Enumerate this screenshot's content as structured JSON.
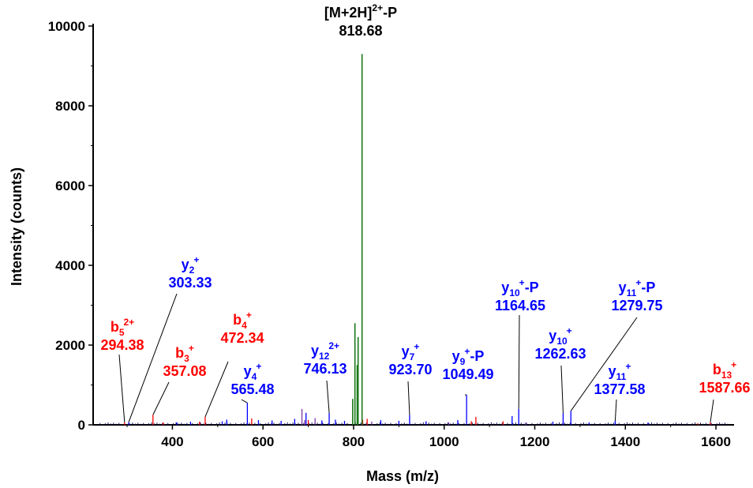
{
  "chart_data": {
    "type": "bar",
    "xlabel": "Mass (m/z)",
    "ylabel": "Intensity (counts)",
    "xlim": [
      225,
      1640
    ],
    "ylim": [
      0,
      10000
    ],
    "x_ticks": [
      "400",
      "600",
      "800",
      "1000",
      "1200",
      "1400",
      "1600"
    ],
    "y_ticks": [
      "0",
      "2000",
      "4000",
      "6000",
      "8000",
      "10000"
    ],
    "grid": false,
    "colors": {
      "y_ion": "#0000ff",
      "b_ion": "#ff0000",
      "precursor": "#000000",
      "precursor_peak": "#1a7a1a",
      "leader": "#000000"
    },
    "annotated_peaks": [
      {
        "base": "[M+2H]",
        "sub": "",
        "sup": "2+",
        "suffix": "-P",
        "mz": "818.68",
        "ion": "precursor",
        "x": 818.68,
        "y": 9300
      },
      {
        "base": "y",
        "sub": "2",
        "sup": "+",
        "suffix": "",
        "mz": "303.33",
        "ion": "y",
        "x": 303.33,
        "y": 60
      },
      {
        "base": "b",
        "sub": "5",
        "sup": "2+",
        "suffix": "",
        "mz": "294.38",
        "ion": "b",
        "x": 294.38,
        "y": 60
      },
      {
        "base": "b",
        "sub": "4",
        "sup": "+",
        "suffix": "",
        "mz": "472.34",
        "ion": "b",
        "x": 472.34,
        "y": 200
      },
      {
        "base": "b",
        "sub": "3",
        "sup": "+",
        "suffix": "",
        "mz": "357.08",
        "ion": "b",
        "x": 357.08,
        "y": 250
      },
      {
        "base": "y",
        "sub": "4",
        "sup": "+",
        "suffix": "",
        "mz": "565.48",
        "ion": "y",
        "x": 565.48,
        "y": 550
      },
      {
        "base": "y",
        "sub": "12",
        "sup": "2+",
        "suffix": "",
        "mz": "746.13",
        "ion": "y",
        "x": 746.13,
        "y": 300
      },
      {
        "base": "y",
        "sub": "7",
        "sup": "+",
        "suffix": "",
        "mz": "923.70",
        "ion": "y",
        "x": 923.7,
        "y": 250
      },
      {
        "base": "y",
        "sub": "9",
        "sup": "+",
        "suffix": "-P",
        "mz": "1049.49",
        "ion": "y",
        "x": 1049.49,
        "y": 750
      },
      {
        "base": "y",
        "sub": "10",
        "sup": "+",
        "suffix": "-P",
        "mz": "1164.65",
        "ion": "y",
        "x": 1164.65,
        "y": 400
      },
      {
        "base": "y",
        "sub": "10",
        "sup": "+",
        "suffix": "",
        "mz": "1262.63",
        "ion": "y",
        "x": 1262.63,
        "y": 300
      },
      {
        "base": "y",
        "sub": "11",
        "sup": "+",
        "suffix": "-P",
        "mz": "1279.75",
        "ion": "y",
        "x": 1279.75,
        "y": 350
      },
      {
        "base": "y",
        "sub": "11",
        "sup": "+",
        "suffix": "",
        "mz": "1377.58",
        "ion": "y",
        "x": 1377.58,
        "y": 100
      },
      {
        "base": "b",
        "sub": "13",
        "sup": "+",
        "suffix": "",
        "mz": "1587.66",
        "ion": "b",
        "x": 1587.66,
        "y": 60
      }
    ],
    "series": [
      {
        "name": "y",
        "points": [
          [
            303.33,
            60
          ],
          [
            565.48,
            550
          ],
          [
            746.13,
            300
          ],
          [
            923.7,
            250
          ],
          [
            1049.49,
            750
          ],
          [
            1164.65,
            400
          ],
          [
            1262.63,
            300
          ],
          [
            1279.75,
            350
          ],
          [
            1377.58,
            100
          ],
          [
            410,
            60
          ],
          [
            440,
            80
          ],
          [
            510,
            90
          ],
          [
            520,
            130
          ],
          [
            590,
            120
          ],
          [
            620,
            110
          ],
          [
            640,
            100
          ],
          [
            670,
            150
          ],
          [
            695,
            300
          ],
          [
            730,
            110
          ],
          [
            760,
            130
          ],
          [
            780,
            100
          ],
          [
            860,
            120
          ],
          [
            900,
            100
          ],
          [
            960,
            90
          ],
          [
            1030,
            120
          ],
          [
            1150,
            220
          ],
          [
            1240,
            80
          ],
          [
            1320,
            60
          ],
          [
            1450,
            60
          ]
        ]
      },
      {
        "name": "b",
        "points": [
          [
            294.38,
            60
          ],
          [
            357.08,
            250
          ],
          [
            472.34,
            200
          ],
          [
            1587.66,
            60
          ],
          [
            380,
            60
          ],
          [
            460,
            80
          ],
          [
            575,
            160
          ],
          [
            700,
            120
          ],
          [
            820,
            130
          ],
          [
            830,
            150
          ],
          [
            1060,
            90
          ],
          [
            1070,
            200
          ],
          [
            1130,
            90
          ],
          [
            1560,
            40
          ]
        ]
      },
      {
        "name": "precursor",
        "points": [
          [
            818.68,
            9300
          ],
          [
            803,
            2550
          ],
          [
            798,
            650
          ],
          [
            810,
            2200
          ],
          [
            808,
            1500
          ]
        ]
      },
      {
        "name": "other",
        "points": [
          [
            686,
            400
          ],
          [
            692,
            120
          ],
          [
            715,
            170
          ],
          [
            840,
            80
          ],
          [
            1010,
            60
          ],
          [
            1180,
            60
          ]
        ]
      }
    ]
  }
}
